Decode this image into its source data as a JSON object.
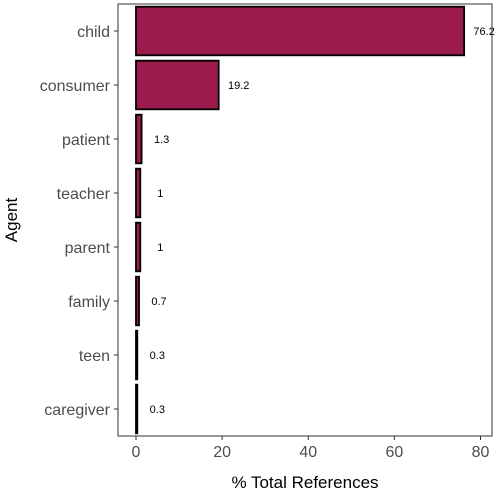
{
  "chart_data": {
    "type": "bar",
    "orientation": "horizontal",
    "categories": [
      "child",
      "consumer",
      "patient",
      "teacher",
      "parent",
      "family",
      "teen",
      "caregiver"
    ],
    "values": [
      76.2,
      19.2,
      1.3,
      1,
      1,
      0.7,
      0.3,
      0.3
    ],
    "value_labels": [
      "76.2",
      "19.2",
      "1.3",
      "1",
      "1",
      "0.7",
      "0.3",
      "0.3"
    ],
    "xlabel": "% Total References",
    "ylabel": "Agent",
    "xlim": [
      0,
      84
    ],
    "xticks": [
      0,
      20,
      40,
      60,
      80
    ],
    "grid": false,
    "bar_fill": "#9b1b4d",
    "bar_outline": "#000000"
  }
}
